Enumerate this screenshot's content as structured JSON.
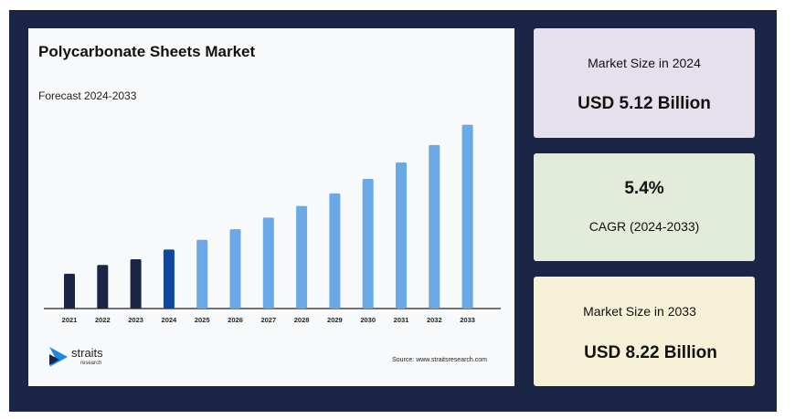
{
  "chart_data": {
    "type": "bar",
    "title": "Polycarbonate Sheets Market",
    "subtitle": "Forecast 2024-2033",
    "categories": [
      "2021",
      "2022",
      "2023",
      "2024",
      "2025",
      "2026",
      "2027",
      "2028",
      "2029",
      "2030",
      "2031",
      "2032",
      "2033"
    ],
    "values": [
      1.8,
      2.25,
      2.55,
      3.05,
      3.55,
      4.1,
      4.7,
      5.3,
      5.95,
      6.7,
      7.55,
      8.45,
      9.5
    ],
    "ylim": [
      0,
      10
    ],
    "xlabel": "",
    "ylabel": "",
    "grid": false,
    "colors": {
      "historical": "#1b2545",
      "base_year": "#0d47a1",
      "forecast": "#6aa8e6"
    },
    "bar_color_roles": [
      "historical",
      "historical",
      "historical",
      "base_year",
      "forecast",
      "forecast",
      "forecast",
      "forecast",
      "forecast",
      "forecast",
      "forecast",
      "forecast",
      "forecast"
    ]
  },
  "brand": {
    "name": "straits",
    "tagline": "research",
    "logo_colors": [
      "#1e88e5",
      "#1b2545"
    ]
  },
  "source": "Source: www.straitsresearch.com",
  "stats": {
    "size_2024": {
      "label": "Market Size in 2024",
      "value": "USD 5.12 Billion"
    },
    "cagr": {
      "value": "5.4%",
      "label": "CAGR (2024-2033)"
    },
    "size_2033": {
      "label": "Market Size in 2033",
      "value": "USD 8.22 Billion"
    }
  },
  "colors": {
    "frame": "#1b2545",
    "card_2024": "#e6e0ec",
    "card_cagr": "#e3ecdb",
    "card_2033": "#f6f0d6"
  }
}
